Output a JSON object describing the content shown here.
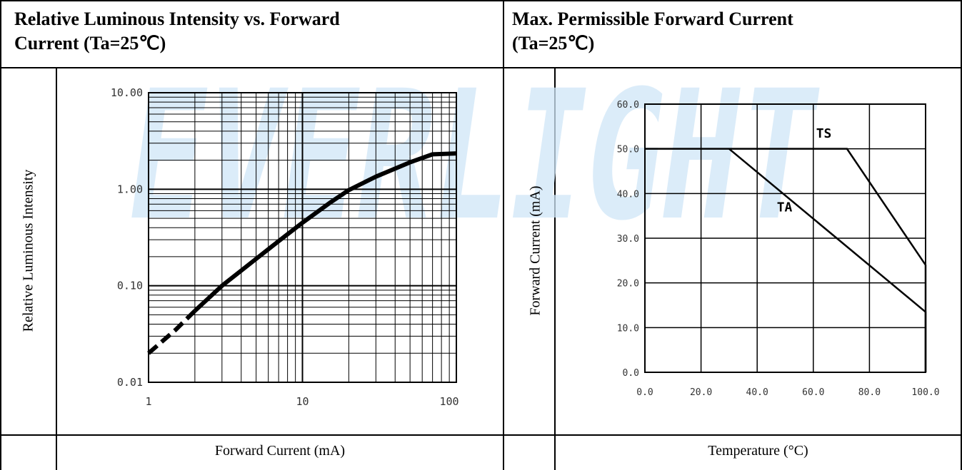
{
  "watermark": "EVERLIGHT",
  "colors": {
    "watermark": "#cfe6f7",
    "grid": "#000000",
    "line": "#000000",
    "minor_grid": "#9a9a9a"
  },
  "left_panel": {
    "title_line1": "Relative Luminous Intensity vs. Forward",
    "title_line2": "Current (Ta=25℃)",
    "ylabel": "Relative Luminous Intensity",
    "xlabel": "Forward Current (mA)"
  },
  "right_panel": {
    "title_line1": "Max. Permissible Forward Current",
    "title_line2": "(Ta=25℃)",
    "ylabel": "Forward Current (mA)",
    "xlabel": "Temperature (°C)"
  },
  "chart_data": [
    {
      "type": "line",
      "x_scale": "log",
      "y_scale": "log",
      "xlim": [
        1,
        100
      ],
      "ylim": [
        0.01,
        10
      ],
      "x_ticks": [
        "1",
        "10",
        "100"
      ],
      "y_ticks": [
        "10.00",
        "1.00",
        "0.10",
        "0.01"
      ],
      "grid": true,
      "series": [
        {
          "x": [
            1,
            1.5,
            2,
            3,
            5,
            7,
            10,
            15,
            20,
            30,
            50,
            70,
            100
          ],
          "y": [
            0.02,
            0.035,
            0.055,
            0.1,
            0.19,
            0.29,
            0.45,
            0.72,
            0.98,
            1.35,
            1.9,
            2.3,
            2.35
          ],
          "dashed_until_x": 2
        }
      ]
    },
    {
      "type": "line",
      "xlim": [
        0,
        100
      ],
      "ylim": [
        0,
        60
      ],
      "x_ticks": [
        "0.0",
        "20.0",
        "40.0",
        "60.0",
        "80.0",
        "100.0"
      ],
      "y_ticks": [
        "60.0",
        "50.0",
        "40.0",
        "30.0",
        "20.0",
        "10.0",
        "0.0"
      ],
      "grid": true,
      "series": [
        {
          "name": "TS",
          "x": [
            0,
            72,
            100,
            100
          ],
          "y": [
            50,
            50,
            24,
            0
          ]
        },
        {
          "name": "TA",
          "x": [
            30,
            100,
            100
          ],
          "y": [
            50,
            13.5,
            0
          ]
        }
      ]
    }
  ]
}
